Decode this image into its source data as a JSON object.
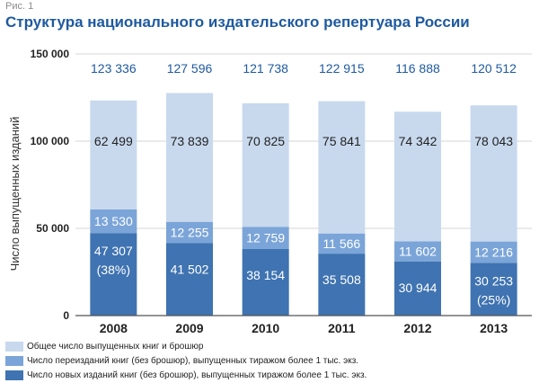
{
  "figure_label": "Рис. 1",
  "title": "Структура национального издательского репертуара России",
  "colors": {
    "total": "#c8d9ee",
    "reissues": "#7ba5d8",
    "new": "#3f73b1",
    "total_label": "#1e5aa0",
    "title": "#1e5aa0"
  },
  "chart_data": {
    "type": "bar",
    "stacked": true,
    "title": "Структура национального издательского репертуара России",
    "xlabel": "",
    "ylabel": "Число выпущенных изданий",
    "ylim": [
      0,
      150000
    ],
    "yticks": [
      0,
      50000,
      100000,
      150000
    ],
    "ytick_labels": [
      "0",
      "50 000",
      "100 000",
      "150 000"
    ],
    "grid": true,
    "legend_position": "bottom",
    "categories": [
      "2008",
      "2009",
      "2010",
      "2011",
      "2012",
      "2013"
    ],
    "series": [
      {
        "name": "Число новых изданий книг (без брошюр), выпущенных тиражом более 1 тыс. экз.",
        "values": [
          47307,
          41502,
          38154,
          35508,
          30944,
          30253
        ],
        "labels": [
          "47 307",
          "41 502",
          "38 154",
          "35 508",
          "30 944",
          "30 253"
        ],
        "notes": [
          "(38%)",
          "",
          "",
          "",
          "",
          "(25%)"
        ]
      },
      {
        "name": "Число переизданий книг (без брошюр), выпущенных тиражом более 1 тыс. экз.",
        "values": [
          13530,
          12255,
          12759,
          11566,
          11602,
          12216
        ],
        "labels": [
          "13 530",
          "12 255",
          "12 759",
          "11 566",
          "11 602",
          "12 216"
        ]
      },
      {
        "name": "Общее число выпущенных книг и брошюр",
        "values": [
          62499,
          73839,
          70825,
          75841,
          74342,
          78043
        ],
        "labels": [
          "62 499",
          "73 839",
          "70 825",
          "75 841",
          "74 342",
          "78 043"
        ]
      }
    ],
    "totals": [
      123336,
      127596,
      121738,
      122915,
      116888,
      120512
    ],
    "total_labels": [
      "123 336",
      "127 596",
      "121 738",
      "122 915",
      "116 888",
      "120 512"
    ]
  },
  "legend": [
    {
      "label": "Общее число выпущенных книг и брошюр",
      "color_key": "total"
    },
    {
      "label": "Число переизданий книг (без брошюр), выпущенных тиражом более 1 тыс. экз.",
      "color_key": "reissues"
    },
    {
      "label": "Число новых изданий книг (без брошюр), выпущенных тиражом более 1 тыс. экз.",
      "color_key": "new"
    }
  ]
}
